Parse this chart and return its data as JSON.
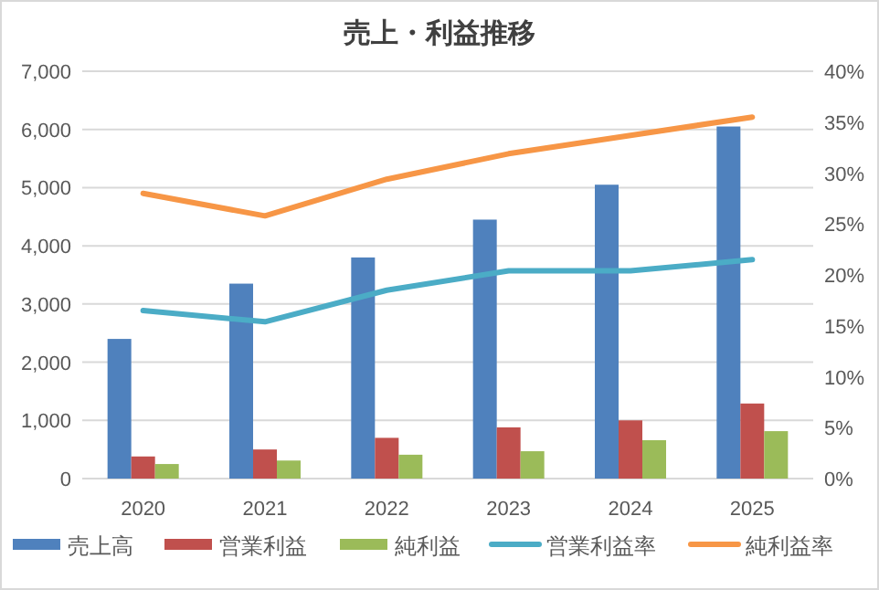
{
  "chart_data": {
    "type": "bar",
    "title": "売上・利益推移",
    "categories": [
      "2020",
      "2021",
      "2022",
      "2023",
      "2024",
      "2025"
    ],
    "series": [
      {
        "name": "売上高",
        "color": "#4f81bd",
        "values": [
          2400,
          3350,
          3800,
          4450,
          5050,
          6050
        ]
      },
      {
        "name": "営業利益",
        "color": "#c0504d",
        "values": [
          380,
          500,
          700,
          880,
          1000,
          1290
        ]
      },
      {
        "name": "純利益",
        "color": "#9bbb59",
        "values": [
          250,
          310,
          410,
          470,
          660,
          815
        ]
      },
      {
        "name": "営業利益率",
        "type": "line",
        "axis": "y2",
        "color": "#4bacc6",
        "values": [
          16.5,
          15.4,
          18.5,
          20.4,
          20.4,
          21.5
        ]
      },
      {
        "name": "純利益率",
        "type": "line",
        "axis": "y2",
        "color": "#f79646",
        "values": [
          28.0,
          25.8,
          29.4,
          31.9,
          33.7,
          35.5
        ]
      }
    ],
    "ylim": [
      0,
      7000
    ],
    "yticks": [
      0,
      {
        "value": 1000,
        "label": "1,000"
      },
      {
        "value": 2000,
        "label": "2,000"
      },
      {
        "value": 3000,
        "label": "3,000"
      },
      {
        "value": 4000,
        "label": "4,000"
      },
      {
        "value": 5000,
        "label": "5,000"
      },
      {
        "value": 6000,
        "label": "6,000"
      },
      {
        "value": 7000,
        "label": "7,000"
      }
    ],
    "y2lim": [
      0,
      40
    ],
    "y2ticks": [
      {
        "value": 0,
        "label": "0%"
      },
      {
        "value": 5,
        "label": "5%"
      },
      {
        "value": 10,
        "label": "10%"
      },
      {
        "value": 15,
        "label": "15%"
      },
      {
        "value": 20,
        "label": "20%"
      },
      {
        "value": 25,
        "label": "25%"
      },
      {
        "value": 30,
        "label": "30%"
      },
      {
        "value": 35,
        "label": "35%"
      },
      {
        "value": 40,
        "label": "40%"
      }
    ],
    "grid": "y",
    "legend": "bottom",
    "marker": "none",
    "line_style": "solid"
  }
}
